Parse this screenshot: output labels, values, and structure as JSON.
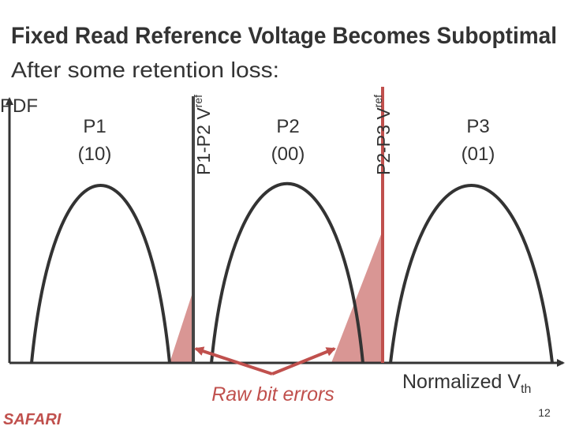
{
  "title": "Fixed Read Reference Voltage Becomes Suboptimal",
  "subtitle": "After some retention loss:",
  "y_axis_label": "PDF",
  "x_axis_label": {
    "text": "Normalized V",
    "subscript": "th"
  },
  "states": [
    {
      "name": "P1",
      "code": "(10)"
    },
    {
      "name": "P2",
      "code": "(00)"
    },
    {
      "name": "P3",
      "code": "(01)"
    }
  ],
  "references": [
    {
      "text": "P1-P2 V",
      "subscript": "ref"
    },
    {
      "text": "P2-P3 V",
      "subscript": "ref"
    }
  ],
  "annotation": "Raw bit errors",
  "logo": "SAFARI",
  "page_number": "12"
}
